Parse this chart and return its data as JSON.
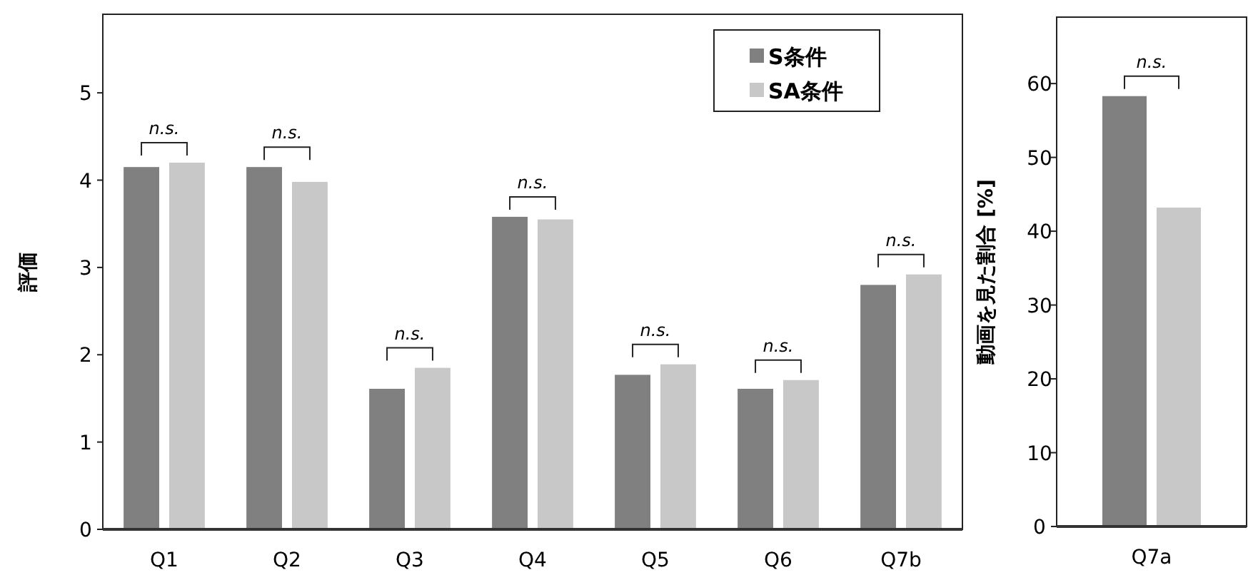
{
  "chart_data": [
    {
      "type": "bar",
      "categories": [
        "Q1",
        "Q2",
        "Q3",
        "Q4",
        "Q5",
        "Q6",
        "Q7b"
      ],
      "ylabel": "評価",
      "ylim": [
        0,
        5.9
      ],
      "yticks": [
        0,
        1,
        2,
        3,
        4,
        5
      ],
      "legend": "top right",
      "series": [
        {
          "name": "S条件",
          "color": "#808080",
          "values": [
            4.15,
            4.15,
            1.61,
            3.58,
            1.77,
            1.61,
            2.8
          ]
        },
        {
          "name": "SA条件",
          "color": "#c8c8c8",
          "values": [
            4.2,
            3.98,
            1.85,
            3.55,
            1.89,
            1.71,
            2.92
          ]
        }
      ],
      "annotations": [
        "*n.s.*",
        "*n.s.*",
        "*n.s.*",
        "*n.s.*",
        "*n.s.*",
        "*n.s.*",
        "*n.s.*"
      ]
    },
    {
      "type": "bar",
      "categories": [
        "Q7a"
      ],
      "ylabel": "動画を見た割合 [%]",
      "ylim": [
        0,
        69
      ],
      "yticks": [
        0,
        10,
        20,
        30,
        40,
        50,
        60
      ],
      "series": [
        {
          "color": "#808080",
          "values": [
            58.3
          ]
        },
        {
          "color": "#c8c8c8",
          "values": [
            43.2
          ]
        }
      ],
      "annotations": [
        "*n.s.*"
      ]
    }
  ]
}
